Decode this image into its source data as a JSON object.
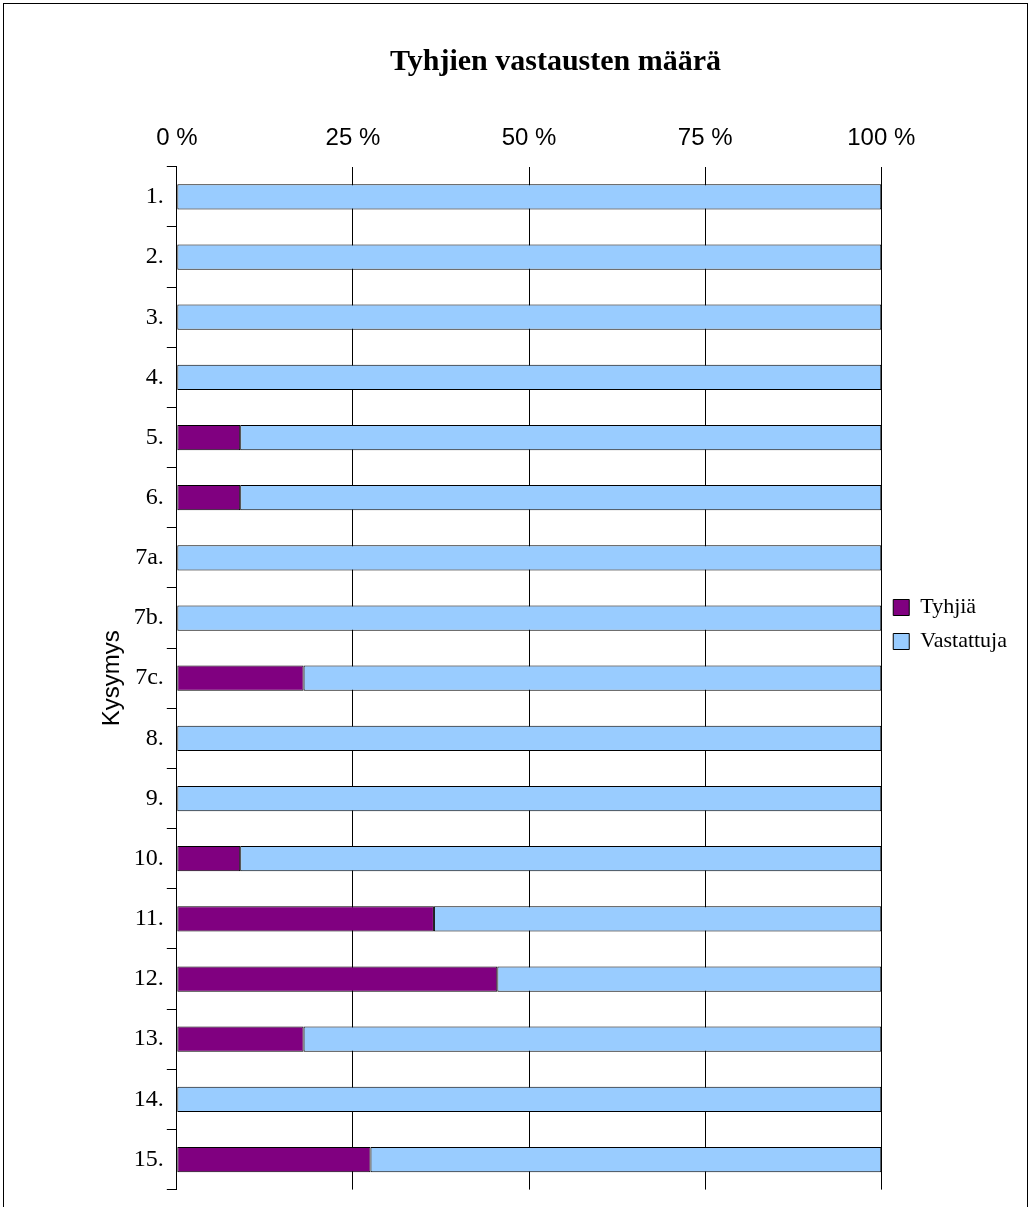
{
  "chart_data": {
    "type": "bar",
    "orientation": "horizontal",
    "stacked": true,
    "title": "Tyhjien vastausten määrä",
    "ylabel": "Kysymys",
    "categories": [
      "1.",
      "2.",
      "3.",
      "4.",
      "5.",
      "6.",
      "7a.",
      "7b.",
      "7c.",
      "8.",
      "9.",
      "10.",
      "11.",
      "12.",
      "13.",
      "14.",
      "15."
    ],
    "series": [
      {
        "name": "Tyhjiä",
        "color": "#800080",
        "values": [
          0,
          0,
          0,
          0,
          9,
          9,
          0,
          0,
          18,
          0,
          0,
          9,
          36.5,
          45.5,
          18,
          0,
          27.5
        ]
      },
      {
        "name": "Vastattuja",
        "color": "#99ccff",
        "values": [
          100,
          100,
          100,
          100,
          91,
          91,
          100,
          100,
          82,
          100,
          100,
          91,
          63.5,
          54.5,
          82,
          100,
          72.5
        ]
      }
    ],
    "xlim": [
      0,
      100
    ],
    "xticks": [
      {
        "value": 0,
        "label": "0 %"
      },
      {
        "value": 25,
        "label": "25 %"
      },
      {
        "value": 50,
        "label": "50 %"
      },
      {
        "value": 75,
        "label": "75 %"
      },
      {
        "value": 100,
        "label": "100 %"
      }
    ],
    "grid": "x",
    "legend": "right"
  }
}
